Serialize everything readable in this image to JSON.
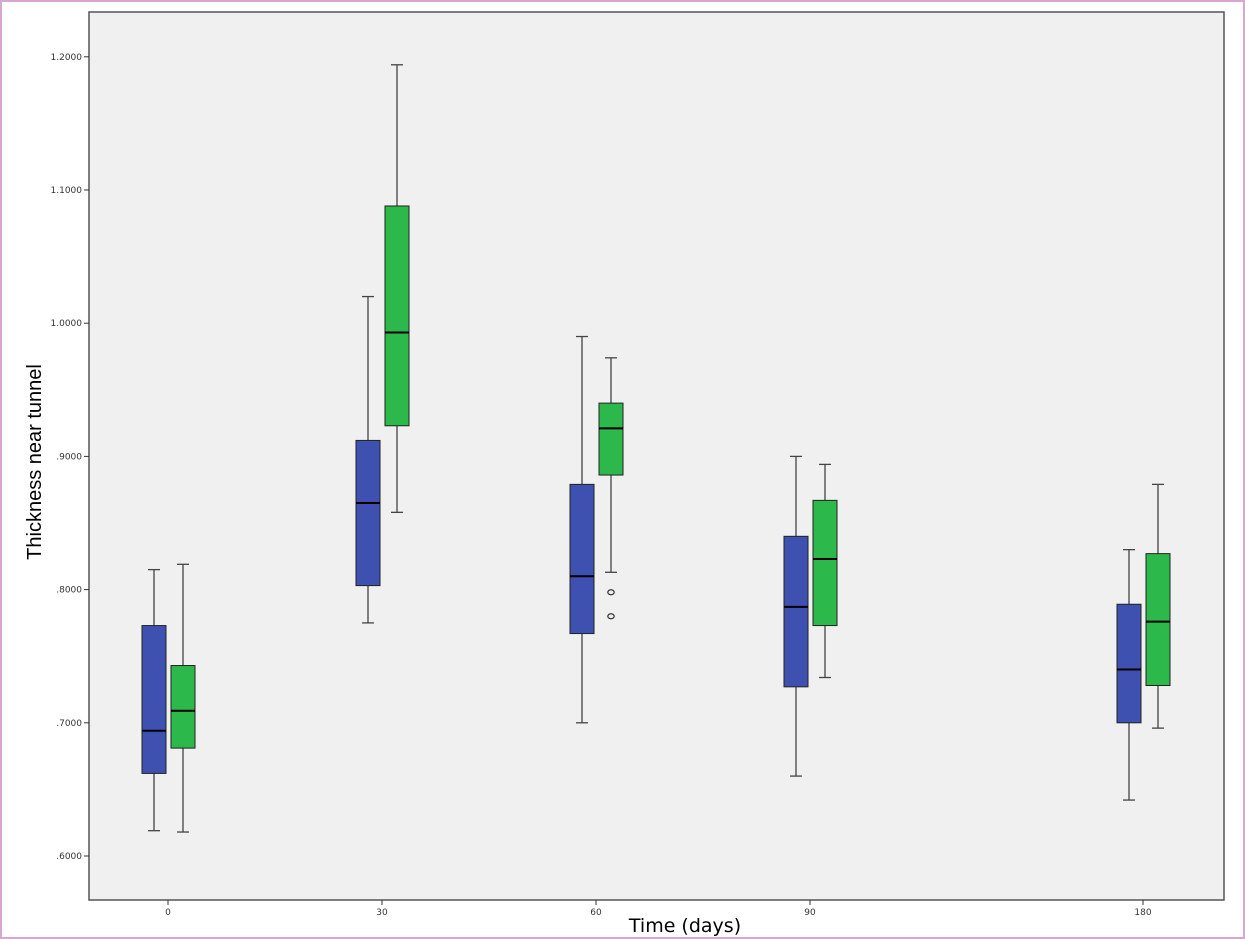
{
  "chart_data": {
    "type": "boxplot",
    "xlabel": "Time (days)",
    "ylabel": "Thickness near tunnel",
    "categories": [
      "0",
      "30",
      "60",
      "90",
      "180"
    ],
    "yticks": [
      ".6000",
      ".7000",
      ".8000",
      ".9000",
      "1.0000",
      "1.1000",
      "1.2000"
    ],
    "ylim": [
      0.58,
      1.235
    ],
    "grid": false,
    "colors": [
      "#3f51b0",
      "#2db84b"
    ],
    "series": [
      {
        "color": "#3f51b0",
        "boxes": [
          {
            "min": 0.619,
            "q1": 0.662,
            "median": 0.694,
            "q3": 0.773,
            "max": 0.815,
            "outliers": []
          },
          {
            "min": 0.775,
            "q1": 0.803,
            "median": 0.865,
            "q3": 0.912,
            "max": 1.02,
            "outliers": []
          },
          {
            "min": 0.7,
            "q1": 0.767,
            "median": 0.81,
            "q3": 0.879,
            "max": 0.99,
            "outliers": []
          },
          {
            "min": 0.66,
            "q1": 0.727,
            "median": 0.787,
            "q3": 0.84,
            "max": 0.9,
            "outliers": []
          },
          {
            "min": 0.642,
            "q1": 0.7,
            "median": 0.74,
            "q3": 0.789,
            "max": 0.83,
            "outliers": []
          }
        ]
      },
      {
        "color": "#2db84b",
        "boxes": [
          {
            "min": 0.618,
            "q1": 0.681,
            "median": 0.709,
            "q3": 0.743,
            "max": 0.819,
            "outliers": []
          },
          {
            "min": 0.858,
            "q1": 0.923,
            "median": 0.993,
            "q3": 1.088,
            "max": 1.194,
            "outliers": []
          },
          {
            "min": 0.813,
            "q1": 0.886,
            "median": 0.921,
            "q3": 0.94,
            "max": 0.974,
            "outliers": [
              0.798,
              0.78
            ]
          },
          {
            "min": 0.734,
            "q1": 0.773,
            "median": 0.823,
            "q3": 0.867,
            "max": 0.894,
            "outliers": []
          },
          {
            "min": 0.696,
            "q1": 0.728,
            "median": 0.776,
            "q3": 0.827,
            "max": 0.879,
            "outliers": []
          }
        ]
      }
    ]
  }
}
